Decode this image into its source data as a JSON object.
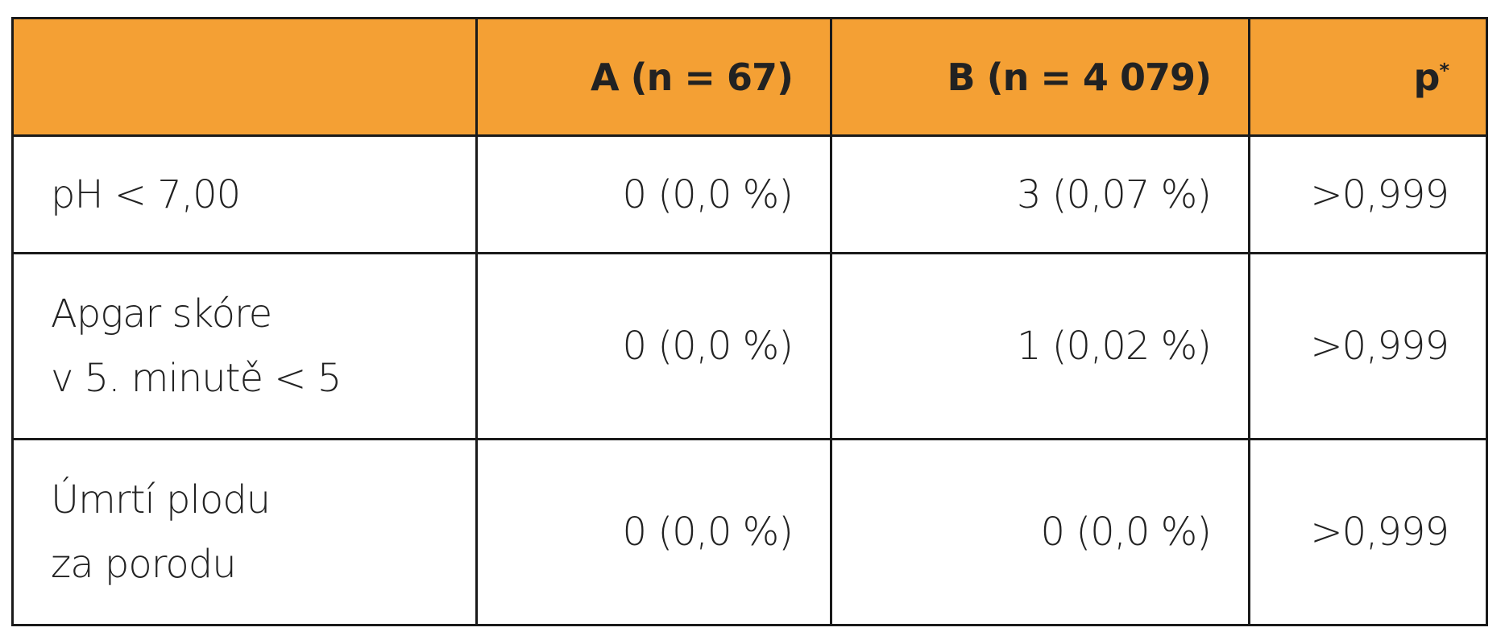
{
  "table": {
    "header": [
      "A (n = 67)",
      "B (n = 4 079)",
      "p"
    ],
    "header_note_mark": "*",
    "rows": [
      [
        "pH < 7,00",
        "0 (0,0 %)",
        "3 (0,07 %)",
        ">0,999"
      ],
      [
        "Apgar skóre\nv 5. minutě < 5",
        "0 (0,0 %)",
        "1 (0,02 %)",
        ">0,999"
      ],
      [
        "Úmrtí plodu\nza porodu",
        "0 (0,0 %)",
        "0 (0,0 %)",
        ">0,999"
      ]
    ]
  }
}
